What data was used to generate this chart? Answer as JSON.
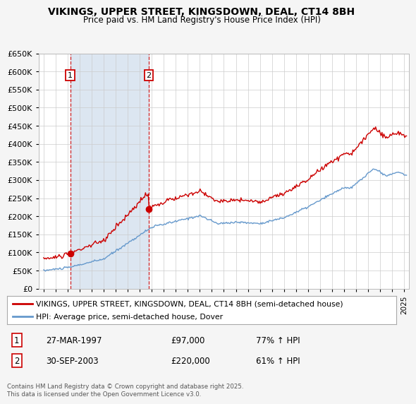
{
  "title": "VIKINGS, UPPER STREET, KINGSDOWN, DEAL, CT14 8BH",
  "subtitle": "Price paid vs. HM Land Registry's House Price Index (HPI)",
  "legend_line1": "VIKINGS, UPPER STREET, KINGSDOWN, DEAL, CT14 8BH (semi-detached house)",
  "legend_line2": "HPI: Average price, semi-detached house, Dover",
  "footer": "Contains HM Land Registry data © Crown copyright and database right 2025.\nThis data is licensed under the Open Government Licence v3.0.",
  "sale1_date": 1997.22,
  "sale1_price": 97000,
  "sale1_label": "1",
  "sale1_text": "27-MAR-1997",
  "sale1_pct": "77% ↑ HPI",
  "sale2_date": 2003.75,
  "sale2_price": 220000,
  "sale2_label": "2",
  "sale2_text": "30-SEP-2003",
  "sale2_pct": "61% ↑ HPI",
  "property_color": "#cc0000",
  "hpi_color": "#6699cc",
  "vspan_color": "#dce6f1",
  "plot_bg_color": "#ffffff",
  "fig_bg_color": "#f5f5f5",
  "grid_color": "#cccccc",
  "ylim": [
    0,
    650000
  ],
  "xlim": [
    1994.6,
    2025.4
  ],
  "yticks": [
    0,
    50000,
    100000,
    150000,
    200000,
    250000,
    300000,
    350000,
    400000,
    450000,
    500000,
    550000,
    600000,
    650000
  ]
}
